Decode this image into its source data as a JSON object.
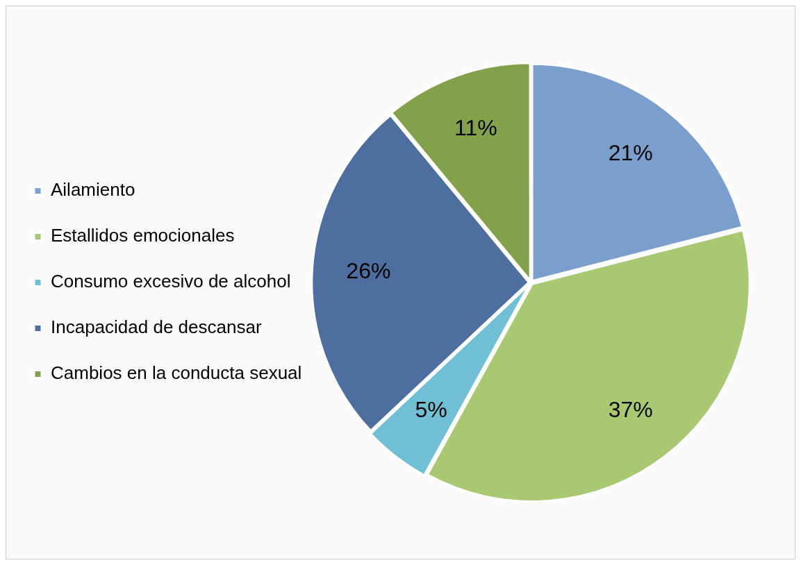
{
  "chart_data": {
    "type": "pie",
    "categories": [
      "Ailamiento",
      "Estallidos emocionales",
      "Consumo excesivo de alcohol",
      "Incapacidad de descansar",
      "Cambios en la conducta sexual"
    ],
    "values": [
      21,
      37,
      5,
      26,
      11
    ],
    "colors": [
      "#7a9fcc",
      "#a9c872",
      "#70bfd4",
      "#4d6e9e",
      "#83a04a"
    ],
    "value_labels": [
      "21%",
      "37%",
      "5%",
      "26%",
      "11%"
    ],
    "legend": "left"
  }
}
